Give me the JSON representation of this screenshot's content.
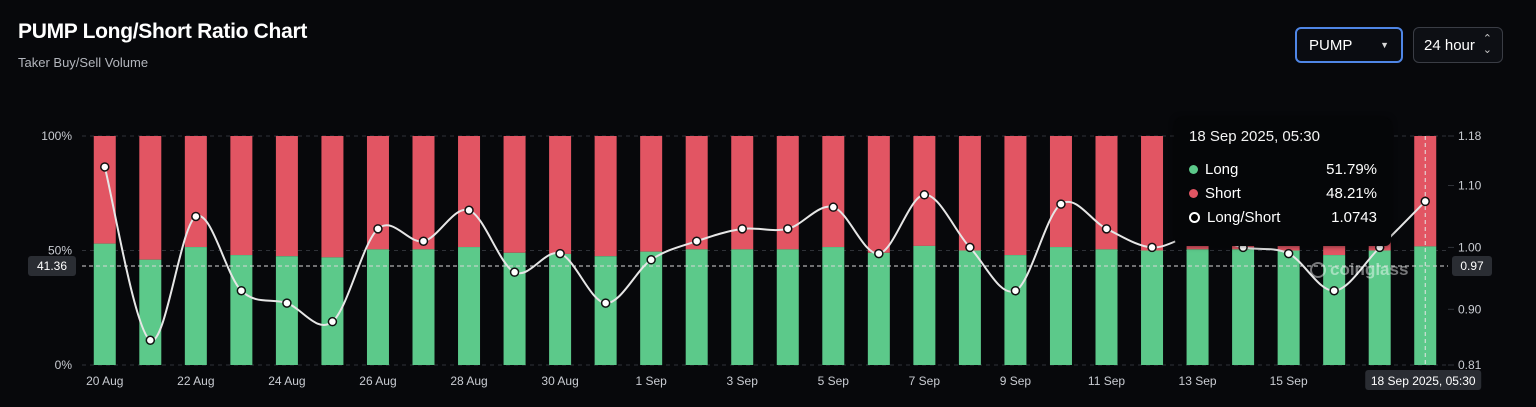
{
  "header": {
    "title": "PUMP Long/Short Ratio Chart",
    "subtitle": "Taker Buy/Sell Volume"
  },
  "controls": {
    "symbol_value": "PUMP",
    "interval_value": "24 hour"
  },
  "tooltip": {
    "title": "18 Sep 2025, 05:30",
    "rows": [
      {
        "label": "Long",
        "value": "51.79%"
      },
      {
        "label": "Short",
        "value": "48.21%"
      },
      {
        "label": "Long/Short",
        "value": "1.0743"
      }
    ]
  },
  "watermark": "coinglass",
  "colors": {
    "long": "#5cc98a",
    "short": "#e25563",
    "ratio_line": "#e6e6e6",
    "background": "#07080b"
  },
  "chart_data": {
    "type": "bar",
    "stacked": true,
    "categories": [
      "20 Aug",
      "21 Aug",
      "22 Aug",
      "23 Aug",
      "24 Aug",
      "25 Aug",
      "26 Aug",
      "27 Aug",
      "28 Aug",
      "29 Aug",
      "30 Aug",
      "31 Aug",
      "1 Sep",
      "2 Sep",
      "3 Sep",
      "4 Sep",
      "5 Sep",
      "6 Sep",
      "7 Sep",
      "8 Sep",
      "9 Sep",
      "10 Sep",
      "11 Sep",
      "12 Sep",
      "13 Sep",
      "14 Sep",
      "15 Sep",
      "16 Sep",
      "17 Sep",
      "18 Sep"
    ],
    "x_tick_labels": [
      "20 Aug",
      "22 Aug",
      "24 Aug",
      "26 Aug",
      "28 Aug",
      "30 Aug",
      "1 Sep",
      "3 Sep",
      "5 Sep",
      "7 Sep",
      "9 Sep",
      "11 Sep",
      "13 Sep",
      "15 Sep"
    ],
    "hover_label": "18 Sep 2025, 05:30",
    "series": [
      {
        "name": "Long",
        "values": [
          53,
          46,
          51.5,
          48,
          47.5,
          47,
          50.5,
          50.5,
          51.5,
          49,
          48.5,
          47.5,
          49.5,
          50.5,
          50.5,
          50.5,
          51.5,
          49,
          52,
          50,
          48,
          51.5,
          50.5,
          50,
          50.5,
          50.5,
          50,
          48,
          50,
          51.79
        ]
      },
      {
        "name": "Short",
        "values": [
          47,
          54,
          48.5,
          52,
          52.5,
          53,
          49.5,
          49.5,
          48.5,
          51,
          51.5,
          52.5,
          50.5,
          49.5,
          49.5,
          49.5,
          48.5,
          51,
          48,
          50,
          52,
          48.5,
          49.5,
          50,
          49.5,
          49.5,
          50,
          52,
          50,
          48.21
        ]
      },
      {
        "name": "Long/Short",
        "axis": "right",
        "values": [
          1.13,
          0.85,
          1.05,
          0.93,
          0.91,
          0.88,
          1.03,
          1.01,
          1.06,
          0.96,
          0.99,
          0.91,
          0.98,
          1.01,
          1.03,
          1.03,
          1.065,
          0.99,
          1.085,
          1.0,
          0.93,
          1.07,
          1.03,
          1.0,
          1.02,
          1.0,
          0.99,
          0.93,
          1.0,
          1.0743
        ]
      }
    ],
    "left_axis": {
      "ticks": [
        "100%",
        "50%",
        "0%"
      ],
      "ylim": [
        0,
        100
      ],
      "crosshair_label": "41.36"
    },
    "right_axis": {
      "ticks": [
        "1.18",
        "1.10",
        "1.00",
        "0.90",
        "0.81"
      ],
      "ylim": [
        0.81,
        1.18
      ],
      "crosshair_label": "0.97"
    }
  }
}
